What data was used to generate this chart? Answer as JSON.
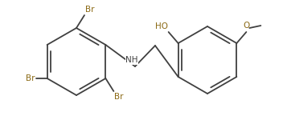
{
  "bg_color": "#ffffff",
  "bond_color": "#404040",
  "bond_lw": 1.3,
  "inner_lw": 1.3,
  "label_color_Br": "#8B6914",
  "label_color_N": "#404040",
  "label_color_O": "#8B6914",
  "fs": 7.5,
  "figsize": [
    3.57,
    1.55
  ],
  "dpi": 100,
  "xlim": [
    0,
    357
  ],
  "ylim": [
    0,
    155
  ],
  "r1cx": 95,
  "r1cy": 78,
  "r1r": 42,
  "r2cx": 258,
  "r2cy": 80,
  "r2r": 42,
  "nh_x": 168,
  "nh_y": 72,
  "ch2_x": 193,
  "ch2_y": 98
}
